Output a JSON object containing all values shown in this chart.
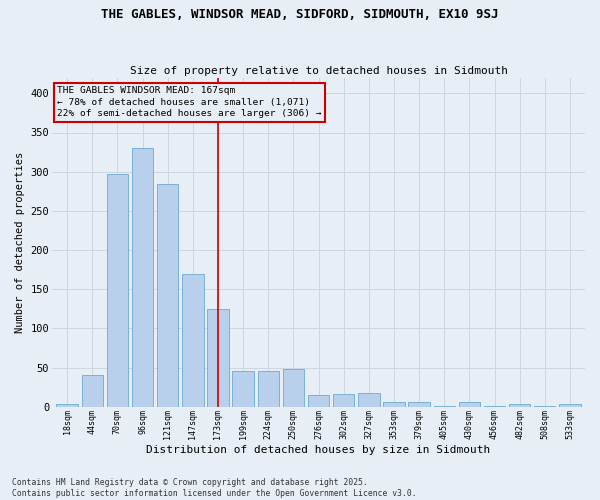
{
  "title1": "THE GABLES, WINDSOR MEAD, SIDFORD, SIDMOUTH, EX10 9SJ",
  "title2": "Size of property relative to detached houses in Sidmouth",
  "xlabel": "Distribution of detached houses by size in Sidmouth",
  "ylabel": "Number of detached properties",
  "bar_labels": [
    "18sqm",
    "44sqm",
    "70sqm",
    "96sqm",
    "121sqm",
    "147sqm",
    "173sqm",
    "199sqm",
    "224sqm",
    "250sqm",
    "276sqm",
    "302sqm",
    "327sqm",
    "353sqm",
    "379sqm",
    "405sqm",
    "430sqm",
    "456sqm",
    "482sqm",
    "508sqm",
    "533sqm"
  ],
  "bar_values": [
    3,
    40,
    297,
    330,
    284,
    170,
    125,
    45,
    46,
    48,
    15,
    16,
    17,
    6,
    6,
    1,
    6,
    1,
    3,
    1,
    3
  ],
  "bar_color": "#b8d0eb",
  "bar_edge_color": "#6aaad4",
  "vline_index": 6,
  "annotation_text_lines": [
    "THE GABLES WINDSOR MEAD: 167sqm",
    "← 78% of detached houses are smaller (1,071)",
    "22% of semi-detached houses are larger (306) →"
  ],
  "vline_color": "#cc0000",
  "box_edge_color": "#cc0000",
  "grid_color": "#ccd5e0",
  "background_color": "#e8eef5",
  "footnote": "Contains HM Land Registry data © Crown copyright and database right 2025.\nContains public sector information licensed under the Open Government Licence v3.0.",
  "ylim": [
    0,
    420
  ],
  "yticks": [
    0,
    50,
    100,
    150,
    200,
    250,
    300,
    350,
    400
  ]
}
